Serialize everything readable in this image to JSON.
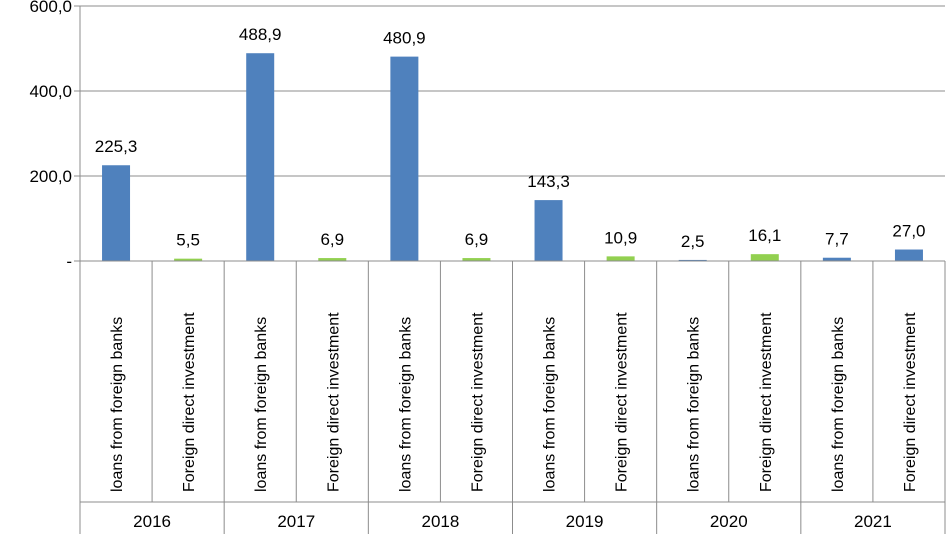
{
  "chart_data": {
    "type": "bar",
    "y_ticks": [
      "-",
      "200,0",
      "400,0",
      "600,0"
    ],
    "ylim": [
      0,
      600
    ],
    "grid": true,
    "legend": "none",
    "categories": [
      {
        "year": "2016",
        "label": "loans from foreign banks",
        "value": 225.3,
        "display": "225,3",
        "color": "#4f81bd"
      },
      {
        "year": "2016",
        "label": "Foreign direct investment",
        "value": 5.5,
        "display": "5,5",
        "color": "#92d050"
      },
      {
        "year": "2017",
        "label": "loans from foreign banks",
        "value": 488.9,
        "display": "488,9",
        "color": "#4f81bd"
      },
      {
        "year": "2017",
        "label": "Foreign direct investment",
        "value": 6.9,
        "display": "6,9",
        "color": "#92d050"
      },
      {
        "year": "2018",
        "label": "loans from foreign banks",
        "value": 480.9,
        "display": "480,9",
        "color": "#4f81bd"
      },
      {
        "year": "2018",
        "label": "Foreign direct investment",
        "value": 6.9,
        "display": "6,9",
        "color": "#92d050"
      },
      {
        "year": "2019",
        "label": "loans from foreign banks",
        "value": 143.3,
        "display": "143,3",
        "color": "#4f81bd"
      },
      {
        "year": "2019",
        "label": "Foreign direct investment",
        "value": 10.9,
        "display": "10,9",
        "color": "#92d050"
      },
      {
        "year": "2020",
        "label": "loans from foreign banks",
        "value": 2.5,
        "display": "2,5",
        "color": "#4f81bd"
      },
      {
        "year": "2020",
        "label": "Foreign direct investment",
        "value": 16.1,
        "display": "16,1",
        "color": "#92d050"
      },
      {
        "year": "2021",
        "label": "loans from foreign banks",
        "value": 7.7,
        "display": "7,7",
        "color": "#4f81bd"
      },
      {
        "year": "2021",
        "label": "Foreign direct investment",
        "value": 27.0,
        "display": "27,0",
        "color": "#4f81bd"
      }
    ],
    "years": [
      "2016",
      "2017",
      "2018",
      "2019",
      "2020",
      "2021"
    ]
  }
}
